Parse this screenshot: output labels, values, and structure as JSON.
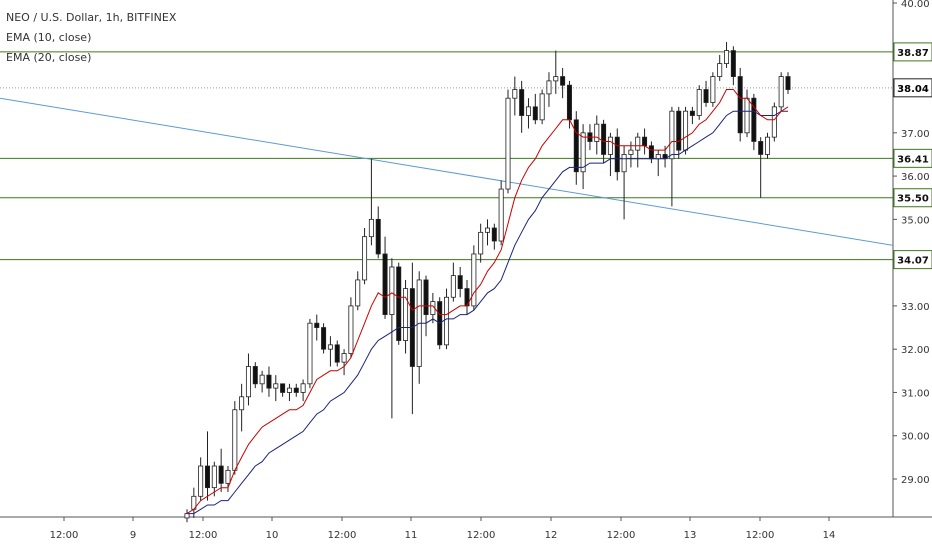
{
  "chart_data": {
    "type": "candlestick",
    "title": "NEO / U.S. Dollar, 1h, BITFINEX",
    "indicators": [
      {
        "name": "EMA (10, close)",
        "color": "#cc0000"
      },
      {
        "name": "EMA (20, close)",
        "color": "#1a237e"
      }
    ],
    "price_axis": {
      "ticks": [
        "40.00",
        "37.00",
        "36.00",
        "35.00",
        "33.00",
        "32.00",
        "31.00",
        "30.00",
        "29.00"
      ],
      "ylim": [
        28.1,
        40.05
      ]
    },
    "time_axis": {
      "ticks": [
        "12:00",
        "9",
        "12:00",
        "10",
        "12:00",
        "11",
        "12:00",
        "12",
        "12:00",
        "13",
        "12:00",
        "14"
      ],
      "start_hour": 0,
      "end_hour": 128
    },
    "horizontal_levels": [
      {
        "label": "38.87",
        "value": 38.87,
        "color": "#3d7a1a"
      },
      {
        "label": "36.41",
        "value": 36.41,
        "color": "#3d7a1a"
      },
      {
        "label": "35.50",
        "value": 35.5,
        "color": "#3d7a1a"
      },
      {
        "label": "34.07",
        "value": 34.07,
        "color": "#3d7a1a"
      }
    ],
    "last_price": {
      "label": "38.04",
      "value": 38.04
    },
    "trendline": {
      "color": "#5b9bd5",
      "points": [
        [
          0,
          37.8
        ],
        [
          128,
          34.4
        ]
      ]
    },
    "candles_ohlc": [
      [
        28.1,
        28.3,
        28.0,
        28.2
      ],
      [
        28.3,
        28.8,
        28.1,
        28.6
      ],
      [
        28.6,
        29.5,
        28.5,
        29.3
      ],
      [
        29.3,
        30.1,
        28.5,
        28.8
      ],
      [
        28.8,
        29.4,
        28.6,
        29.3
      ],
      [
        29.3,
        29.7,
        28.7,
        28.9
      ],
      [
        28.9,
        29.3,
        28.7,
        29.2
      ],
      [
        29.2,
        30.8,
        29.1,
        30.6
      ],
      [
        30.6,
        31.2,
        30.1,
        30.9
      ],
      [
        30.9,
        31.9,
        30.7,
        31.6
      ],
      [
        31.6,
        31.7,
        31.1,
        31.2
      ],
      [
        31.2,
        31.5,
        31.0,
        31.4
      ],
      [
        31.4,
        31.6,
        30.9,
        31.1
      ],
      [
        31.1,
        31.4,
        30.8,
        31.2
      ],
      [
        31.2,
        31.2,
        30.9,
        31.0
      ],
      [
        31.0,
        31.2,
        30.8,
        31.1
      ],
      [
        31.1,
        31.2,
        30.9,
        31.0
      ],
      [
        31.0,
        31.3,
        30.8,
        31.2
      ],
      [
        31.2,
        32.7,
        31.1,
        32.6
      ],
      [
        32.6,
        32.8,
        32.2,
        32.5
      ],
      [
        32.5,
        32.6,
        31.9,
        32.0
      ],
      [
        32.0,
        32.3,
        31.6,
        32.1
      ],
      [
        32.1,
        32.2,
        31.6,
        31.7
      ],
      [
        31.7,
        32.0,
        31.4,
        31.9
      ],
      [
        31.9,
        33.2,
        31.8,
        33.0
      ],
      [
        33.0,
        33.8,
        32.9,
        33.6
      ],
      [
        33.6,
        34.8,
        33.5,
        34.6
      ],
      [
        34.6,
        36.4,
        34.4,
        35.0
      ],
      [
        35.0,
        35.3,
        34.1,
        34.2
      ],
      [
        34.2,
        34.6,
        32.7,
        32.8
      ],
      [
        32.8,
        34.1,
        30.4,
        33.9
      ],
      [
        33.9,
        34.0,
        32.1,
        32.2
      ],
      [
        32.2,
        33.6,
        31.9,
        33.4
      ],
      [
        33.4,
        34.0,
        30.5,
        31.6
      ],
      [
        31.6,
        33.8,
        31.2,
        33.6
      ],
      [
        33.6,
        33.7,
        32.3,
        32.8
      ],
      [
        32.8,
        33.3,
        32.6,
        33.1
      ],
      [
        33.1,
        33.2,
        32.0,
        32.1
      ],
      [
        32.1,
        33.4,
        32.0,
        33.2
      ],
      [
        33.2,
        34.0,
        33.1,
        33.7
      ],
      [
        33.7,
        33.9,
        33.2,
        33.4
      ],
      [
        33.4,
        33.6,
        32.8,
        33.0
      ],
      [
        33.0,
        34.4,
        32.9,
        34.2
      ],
      [
        34.2,
        34.9,
        34.0,
        34.7
      ],
      [
        34.7,
        35.0,
        34.4,
        34.8
      ],
      [
        34.8,
        34.9,
        34.3,
        34.5
      ],
      [
        34.5,
        35.9,
        34.4,
        35.7
      ],
      [
        35.7,
        38.0,
        35.6,
        37.8
      ],
      [
        37.8,
        38.3,
        37.4,
        38.0
      ],
      [
        38.0,
        38.2,
        37.0,
        37.4
      ],
      [
        37.4,
        37.8,
        37.1,
        37.6
      ],
      [
        37.6,
        37.9,
        37.2,
        37.3
      ],
      [
        37.3,
        38.0,
        37.2,
        37.9
      ],
      [
        37.9,
        38.4,
        37.6,
        38.2
      ],
      [
        38.2,
        38.9,
        37.9,
        38.3
      ],
      [
        38.3,
        38.5,
        37.8,
        38.1
      ],
      [
        38.1,
        38.2,
        37.1,
        37.3
      ],
      [
        37.3,
        37.5,
        35.8,
        36.1
      ],
      [
        36.1,
        37.2,
        35.7,
        37.0
      ],
      [
        37.0,
        37.2,
        36.6,
        36.8
      ],
      [
        36.8,
        37.4,
        36.5,
        37.2
      ],
      [
        37.2,
        37.3,
        36.3,
        36.5
      ],
      [
        36.5,
        37.0,
        36.0,
        36.9
      ],
      [
        36.9,
        37.1,
        35.9,
        36.1
      ],
      [
        36.1,
        36.7,
        35.0,
        36.5
      ],
      [
        36.5,
        36.8,
        36.2,
        36.6
      ],
      [
        36.6,
        37.0,
        36.2,
        36.9
      ],
      [
        36.9,
        37.1,
        36.5,
        36.7
      ],
      [
        36.7,
        36.8,
        36.3,
        36.4
      ],
      [
        36.4,
        36.6,
        36.0,
        36.5
      ],
      [
        36.5,
        36.7,
        36.2,
        36.4
      ],
      [
        36.4,
        37.6,
        35.3,
        37.5
      ],
      [
        37.5,
        37.6,
        36.4,
        36.6
      ],
      [
        36.6,
        37.6,
        36.5,
        37.5
      ],
      [
        37.5,
        37.6,
        37.2,
        37.4
      ],
      [
        37.4,
        38.1,
        37.3,
        38.0
      ],
      [
        38.0,
        38.2,
        37.6,
        37.7
      ],
      [
        37.7,
        38.4,
        37.6,
        38.3
      ],
      [
        38.3,
        38.8,
        38.2,
        38.6
      ],
      [
        38.6,
        39.1,
        38.5,
        38.9
      ],
      [
        38.9,
        39.0,
        38.1,
        38.3
      ],
      [
        38.3,
        38.5,
        36.8,
        37.0
      ],
      [
        37.0,
        38.0,
        36.9,
        37.8
      ],
      [
        37.8,
        37.9,
        36.6,
        36.8
      ],
      [
        36.8,
        36.9,
        35.5,
        36.5
      ],
      [
        36.5,
        37.0,
        36.4,
        36.9
      ],
      [
        36.9,
        37.7,
        36.8,
        37.6
      ],
      [
        37.6,
        38.4,
        37.5,
        38.3
      ],
      [
        38.3,
        38.4,
        37.9,
        38.0
      ]
    ],
    "ema10": [
      28.2,
      28.3,
      28.5,
      28.6,
      28.7,
      28.8,
      28.8,
      29.2,
      29.5,
      29.8,
      30.0,
      30.2,
      30.3,
      30.4,
      30.5,
      30.6,
      30.6,
      30.7,
      31.0,
      31.3,
      31.4,
      31.5,
      31.5,
      31.6,
      31.8,
      32.2,
      32.6,
      33.0,
      33.3,
      33.2,
      33.3,
      33.2,
      33.2,
      32.9,
      33.0,
      33.0,
      33.0,
      32.8,
      32.8,
      32.9,
      33.0,
      33.0,
      33.3,
      33.5,
      33.8,
      34.0,
      34.3,
      34.9,
      35.5,
      35.9,
      36.2,
      36.4,
      36.7,
      36.9,
      37.1,
      37.3,
      37.3,
      37.0,
      36.9,
      36.9,
      36.9,
      36.8,
      36.8,
      36.7,
      36.7,
      36.7,
      36.7,
      36.7,
      36.6,
      36.6,
      36.6,
      36.8,
      36.8,
      36.9,
      37.0,
      37.2,
      37.3,
      37.5,
      37.7,
      38.0,
      38.0,
      37.8,
      37.8,
      37.6,
      37.4,
      37.3,
      37.3,
      37.5,
      37.6
    ],
    "ema20": [
      28.2,
      28.2,
      28.3,
      28.4,
      28.4,
      28.5,
      28.5,
      28.7,
      28.9,
      29.1,
      29.3,
      29.4,
      29.6,
      29.7,
      29.8,
      29.9,
      30.0,
      30.1,
      30.3,
      30.5,
      30.6,
      30.8,
      30.9,
      31.0,
      31.2,
      31.4,
      31.7,
      32.0,
      32.2,
      32.3,
      32.4,
      32.5,
      32.5,
      32.5,
      32.6,
      32.6,
      32.7,
      32.6,
      32.7,
      32.7,
      32.8,
      32.8,
      32.9,
      33.1,
      33.3,
      33.4,
      33.6,
      34.0,
      34.4,
      34.7,
      35.0,
      35.2,
      35.5,
      35.7,
      35.9,
      36.1,
      36.2,
      36.2,
      36.2,
      36.3,
      36.3,
      36.3,
      36.4,
      36.4,
      36.4,
      36.4,
      36.4,
      36.4,
      36.4,
      36.4,
      36.4,
      36.5,
      36.5,
      36.6,
      36.7,
      36.8,
      36.9,
      37.0,
      37.2,
      37.4,
      37.5,
      37.5,
      37.5,
      37.5,
      37.4,
      37.4,
      37.4,
      37.5,
      37.5
    ]
  }
}
